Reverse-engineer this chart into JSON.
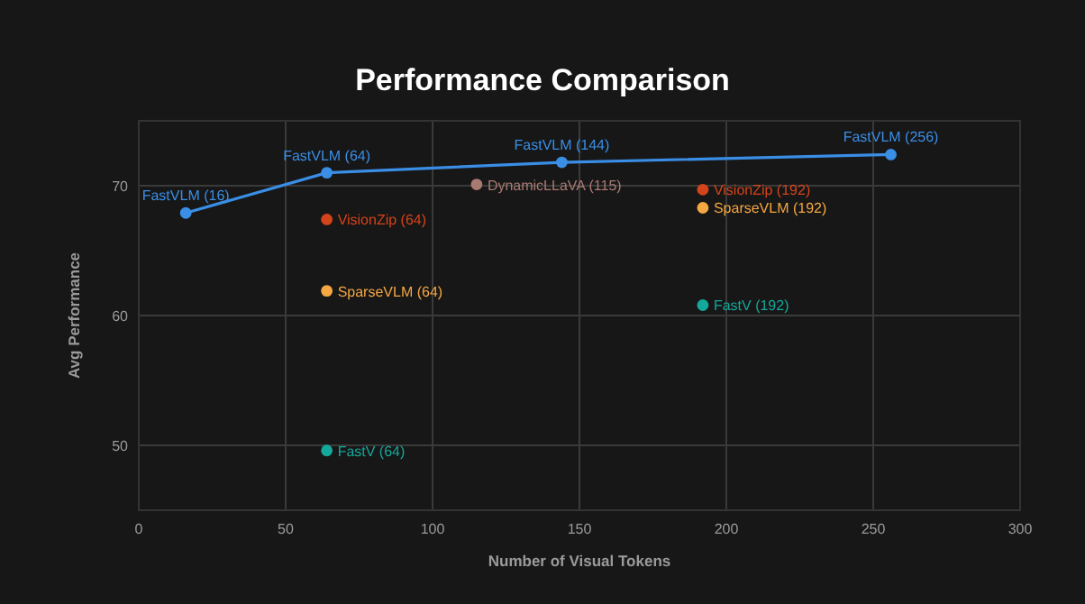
{
  "chart_data": {
    "type": "scatter",
    "title": "Performance Comparison",
    "xlabel": "Number of Visual Tokens",
    "ylabel": "Avg Performance",
    "xlim": [
      0,
      300
    ],
    "xticks": [
      0,
      50,
      100,
      150,
      200,
      250,
      300
    ],
    "ylim": [
      45,
      75
    ],
    "yticks": [
      50,
      60,
      70
    ],
    "grid": true,
    "marker": "circle",
    "series": [
      {
        "type": "line",
        "color": "#3a8ee6",
        "x": [
          16,
          64,
          144,
          256
        ],
        "values": [
          67.9,
          71.0,
          71.8,
          72.4
        ]
      },
      {
        "color": "#d4441a",
        "x": [
          64,
          192
        ],
        "values": [
          67.4,
          69.7
        ]
      },
      {
        "color": "#f5a742",
        "x": [
          64,
          192
        ],
        "values": [
          61.9,
          68.3
        ]
      },
      {
        "color": "#14a89a",
        "x": [
          64,
          192
        ],
        "values": [
          49.6,
          60.8
        ]
      },
      {
        "color": "#a87a72",
        "x": [
          115
        ],
        "values": [
          70.1
        ]
      }
    ],
    "annotations": [
      {
        "text": "FastVLM (16)",
        "x": 16,
        "y": 67.9
      },
      {
        "text": "FastVLM (64)",
        "x": 64,
        "y": 71.0
      },
      {
        "text": "FastVLM (144)",
        "x": 144,
        "y": 71.8
      },
      {
        "text": "FastVLM (256)",
        "x": 256,
        "y": 72.4
      },
      {
        "text": "VisionZip (64)",
        "x": 64,
        "y": 67.4
      },
      {
        "text": "VisionZip (192)",
        "x": 192,
        "y": 69.7
      },
      {
        "text": "SparseVLM (64)",
        "x": 64,
        "y": 61.9
      },
      {
        "text": "SparseVLM (192)",
        "x": 192,
        "y": 68.3
      },
      {
        "text": "FastV (64)",
        "x": 64,
        "y": 49.6
      },
      {
        "text": "FastV (192)",
        "x": 192,
        "y": 60.8
      },
      {
        "text": "DynamicLLaVA (115)",
        "x": 115,
        "y": 70.1
      }
    ]
  }
}
